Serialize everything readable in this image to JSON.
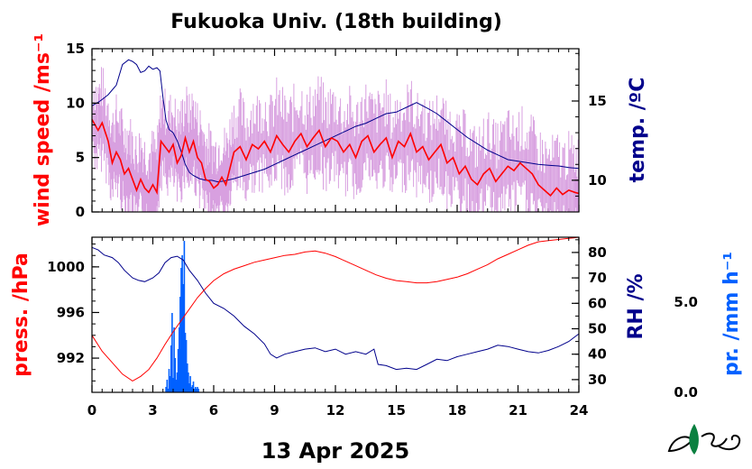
{
  "title": "Fukuoka Univ. (18th building)",
  "date_label": "13 Apr 2025",
  "colors": {
    "wind_main": "#ff0000",
    "wind_gust": "#d8a0e0",
    "temp": "#00008b",
    "press": "#ff0000",
    "rh": "#00008b",
    "precip": "#0060ff",
    "logo": "#0a8040"
  },
  "chart_data": [
    {
      "type": "line",
      "panel": "top",
      "xlim": [
        0,
        24
      ],
      "x_ticks": [
        "0",
        "3",
        "6",
        "9",
        "12",
        "15",
        "18",
        "21",
        "24"
      ],
      "y_left": {
        "label": "wind speed /ms⁻¹",
        "lim": [
          0,
          15
        ],
        "ticks": [
          "0",
          "5",
          "10",
          "15"
        ]
      },
      "y_right": {
        "label": "temp. /ºC",
        "lim": [
          8,
          18.3
        ],
        "ticks": [
          "10",
          "15"
        ]
      },
      "wind_speed": {
        "x": [
          0,
          0.3,
          0.5,
          0.8,
          1.0,
          1.2,
          1.4,
          1.6,
          1.8,
          2.0,
          2.2,
          2.4,
          2.6,
          2.8,
          3.0,
          3.2,
          3.4,
          3.6,
          3.8,
          4.0,
          4.2,
          4.4,
          4.6,
          4.8,
          5.0,
          5.2,
          5.4,
          5.6,
          5.8,
          6.0,
          6.2,
          6.4,
          6.6,
          6.8,
          7.0,
          7.3,
          7.6,
          7.9,
          8.2,
          8.5,
          8.8,
          9.1,
          9.4,
          9.7,
          10.0,
          10.3,
          10.6,
          10.9,
          11.2,
          11.5,
          11.8,
          12.1,
          12.4,
          12.7,
          13.0,
          13.3,
          13.6,
          13.9,
          14.2,
          14.5,
          14.8,
          15.1,
          15.4,
          15.7,
          16.0,
          16.3,
          16.6,
          16.9,
          17.2,
          17.5,
          17.8,
          18.1,
          18.4,
          18.7,
          19.0,
          19.3,
          19.6,
          19.9,
          20.2,
          20.5,
          20.8,
          21.1,
          21.4,
          21.7,
          22.0,
          22.3,
          22.6,
          22.9,
          23.2,
          23.5,
          23.8,
          24.0
        ],
        "y": [
          8.5,
          7.5,
          8.2,
          6.5,
          4.5,
          5.5,
          4.8,
          3.5,
          4.0,
          3.0,
          2.0,
          3.0,
          2.2,
          1.8,
          2.5,
          1.8,
          6.5,
          6.0,
          5.5,
          6.2,
          4.5,
          5.2,
          6.8,
          5.5,
          6.5,
          5.0,
          4.5,
          3.0,
          2.8,
          2.2,
          2.5,
          3.2,
          2.5,
          4.0,
          5.5,
          6.0,
          4.8,
          6.2,
          5.8,
          6.5,
          5.5,
          7.0,
          6.2,
          5.5,
          6.5,
          7.2,
          6.0,
          6.8,
          7.5,
          6.0,
          6.8,
          6.5,
          5.5,
          6.2,
          5.0,
          6.5,
          7.0,
          5.5,
          6.2,
          6.8,
          5.0,
          6.5,
          6.0,
          7.2,
          5.5,
          6.0,
          4.8,
          5.5,
          6.2,
          4.5,
          5.0,
          3.5,
          4.2,
          3.0,
          2.5,
          3.5,
          4.0,
          2.8,
          3.5,
          4.2,
          3.8,
          4.5,
          4.0,
          3.5,
          2.5,
          2.0,
          1.5,
          2.2,
          1.6,
          2.0,
          1.8,
          1.7
        ]
      },
      "temperature": {
        "x": [
          0,
          0.4,
          0.8,
          1.2,
          1.5,
          1.8,
          2.0,
          2.2,
          2.4,
          2.6,
          2.8,
          3.0,
          3.2,
          3.35,
          3.5,
          3.65,
          3.8,
          4.0,
          4.2,
          4.4,
          4.6,
          4.8,
          5.0,
          5.3,
          5.6,
          5.9,
          6.2,
          6.5,
          7.0,
          7.5,
          8.0,
          8.5,
          9.0,
          9.5,
          10.0,
          10.5,
          11.0,
          11.5,
          12.0,
          12.5,
          13.0,
          13.5,
          14.0,
          14.5,
          15.0,
          15.5,
          16.0,
          16.3,
          16.6,
          17.0,
          17.5,
          18.0,
          18.5,
          19.0,
          19.5,
          20.0,
          20.5,
          21.0,
          21.5,
          22.0,
          22.5,
          23.0,
          23.5,
          24.0
        ],
        "y": [
          14.7,
          15.0,
          15.4,
          16.0,
          17.3,
          17.6,
          17.5,
          17.3,
          16.8,
          16.9,
          17.2,
          17.0,
          17.1,
          16.9,
          15.2,
          13.8,
          13.2,
          13.0,
          12.5,
          11.8,
          11.0,
          10.5,
          10.3,
          10.1,
          10.0,
          10.0,
          9.9,
          9.95,
          10.1,
          10.3,
          10.5,
          10.7,
          11.0,
          11.3,
          11.6,
          11.9,
          12.2,
          12.5,
          12.8,
          13.1,
          13.4,
          13.6,
          13.9,
          14.2,
          14.3,
          14.6,
          14.9,
          14.7,
          14.5,
          14.2,
          13.7,
          13.2,
          12.7,
          12.3,
          11.9,
          11.6,
          11.3,
          11.2,
          11.1,
          11.0,
          10.95,
          10.9,
          10.8,
          10.75
        ]
      }
    },
    {
      "type": "line",
      "panel": "bottom",
      "xlim": [
        0,
        24
      ],
      "x_ticks": [
        "0",
        "3",
        "6",
        "9",
        "12",
        "15",
        "18",
        "21",
        "24"
      ],
      "y_left": {
        "label": "press. /hPa",
        "lim": [
          989,
          1002.6
        ],
        "ticks": [
          "992",
          "996",
          "1000"
        ]
      },
      "y_right": {
        "label": "RH /%",
        "lim": [
          25,
          86
        ],
        "ticks": [
          "30",
          "40",
          "50",
          "60",
          "70",
          "80"
        ]
      },
      "y_precip": {
        "label": "pr. /mm h⁻¹",
        "ticks": [
          "0.0",
          "5.0"
        ]
      },
      "pressure": {
        "x": [
          0,
          0.5,
          1.0,
          1.5,
          2.0,
          2.4,
          2.8,
          3.2,
          3.6,
          4.0,
          4.4,
          4.8,
          5.2,
          5.6,
          6.0,
          6.5,
          7.0,
          7.5,
          8.0,
          8.5,
          9.0,
          9.5,
          10.0,
          10.5,
          11.0,
          11.5,
          12.0,
          12.5,
          13.0,
          13.5,
          14.0,
          14.5,
          15.0,
          15.5,
          16.0,
          16.5,
          17.0,
          17.5,
          18.0,
          18.5,
          19.0,
          19.5,
          20.0,
          20.5,
          21.0,
          21.5,
          22.0,
          22.5,
          23.0,
          23.5,
          24.0
        ],
        "y": [
          994.0,
          992.6,
          991.6,
          990.6,
          990.0,
          990.4,
          991.0,
          992.0,
          993.2,
          994.3,
          995.3,
          996.3,
          997.3,
          998.1,
          998.8,
          999.4,
          999.8,
          1000.1,
          1000.4,
          1000.6,
          1000.8,
          1001.0,
          1001.1,
          1001.3,
          1001.4,
          1001.2,
          1000.9,
          1000.5,
          1000.1,
          999.7,
          999.3,
          999.0,
          998.8,
          998.7,
          998.6,
          998.6,
          998.7,
          998.9,
          999.1,
          999.4,
          999.8,
          1000.2,
          1000.7,
          1001.1,
          1001.5,
          1001.9,
          1002.2,
          1002.3,
          1002.4,
          1002.5,
          1002.6
        ]
      },
      "relative_humidity": {
        "x": [
          0,
          0.3,
          0.6,
          1.0,
          1.3,
          1.6,
          2.0,
          2.3,
          2.6,
          3.0,
          3.3,
          3.6,
          3.9,
          4.2,
          4.5,
          4.8,
          5.2,
          5.6,
          6.0,
          6.5,
          7.0,
          7.5,
          8.0,
          8.5,
          8.8,
          9.1,
          9.5,
          10.0,
          10.5,
          11.0,
          11.5,
          12.0,
          12.5,
          13.0,
          13.5,
          13.9,
          14.1,
          14.5,
          15.0,
          15.5,
          16.0,
          16.5,
          17.0,
          17.5,
          18.0,
          18.5,
          19.0,
          19.5,
          20.0,
          20.5,
          21.0,
          21.5,
          22.0,
          22.5,
          23.0,
          23.5,
          24.0
        ],
        "y": [
          82,
          81,
          79,
          78,
          76,
          73,
          70,
          69,
          68.5,
          70,
          72,
          76,
          78,
          78.5,
          77,
          73,
          69,
          64,
          60,
          58,
          55,
          51,
          48,
          44,
          40,
          38.5,
          40,
          41,
          42,
          42.5,
          41,
          42,
          40,
          41,
          40,
          42,
          36,
          35.5,
          34,
          34.5,
          34,
          36,
          38,
          37.5,
          39,
          40,
          41,
          42,
          43.5,
          43,
          42,
          41,
          40.5,
          41.5,
          43,
          45,
          48
        ]
      },
      "precipitation": {
        "x": [
          3.65,
          3.7,
          3.75,
          3.8,
          3.85,
          3.9,
          3.95,
          4.0,
          4.05,
          4.1,
          4.15,
          4.2,
          4.25,
          4.3,
          4.35,
          4.4,
          4.45,
          4.5,
          4.55,
          4.6,
          4.65,
          4.7,
          4.75,
          4.8,
          4.85,
          4.9,
          4.95,
          5.0,
          5.05,
          5.1,
          5.15,
          5.2,
          5.25
        ],
        "y": [
          0.3,
          0.7,
          0.2,
          1.3,
          0.9,
          2.6,
          4.4,
          0.8,
          3.6,
          1.9,
          0.7,
          1.1,
          2.4,
          3.6,
          5.3,
          6.9,
          7.6,
          6.0,
          8.4,
          3.3,
          2.9,
          1.6,
          1.1,
          0.5,
          0.9,
          0.3,
          0.4,
          0.6,
          0.2,
          0.3,
          0.2,
          0.3,
          0.2
        ]
      }
    }
  ]
}
